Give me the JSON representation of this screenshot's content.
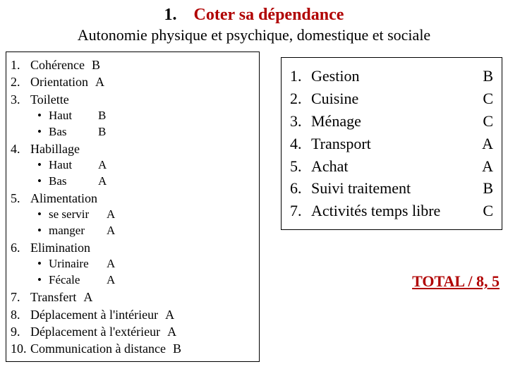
{
  "header": {
    "number": "1.",
    "title": "Coter sa dépendance",
    "subtitle": "Autonomie physique et psychique, domestique et sociale",
    "title_color": "#b00000"
  },
  "left": {
    "items": [
      {
        "n": "1.",
        "label": "Cohérence",
        "grade": "B"
      },
      {
        "n": "2.",
        "label": "Orientation",
        "grade": "A"
      },
      {
        "n": "3.",
        "label": "Toilette",
        "grade": "",
        "sub": [
          {
            "label": "Haut",
            "grade": "B"
          },
          {
            "label": "Bas",
            "grade": "B"
          }
        ]
      },
      {
        "n": "4.",
        "label": "Habillage",
        "grade": "",
        "sub": [
          {
            "label": "Haut",
            "grade": "A"
          },
          {
            "label": "Bas",
            "grade": "A"
          }
        ]
      },
      {
        "n": "5.",
        "label": "Alimentation",
        "grade": "",
        "sub": [
          {
            "label": "se servir",
            "grade": "A",
            "wide": true
          },
          {
            "label": "manger",
            "grade": "A",
            "wide": true
          }
        ]
      },
      {
        "n": "6.",
        "label": "Elimination",
        "grade": "",
        "sub": [
          {
            "label": "Urinaire",
            "grade": "A",
            "wide": true
          },
          {
            "label": "Fécale",
            "grade": "A",
            "wide": true
          }
        ]
      },
      {
        "n": "7.",
        "label": "Transfert",
        "grade": "A",
        "inline": true
      },
      {
        "n": "8.",
        "label": "Déplacement à l'intérieur",
        "grade": "A",
        "inline": true
      },
      {
        "n": "9.",
        "label": "Déplacement à l'extérieur",
        "grade": "A",
        "inline": true
      },
      {
        "n": "10.",
        "label": "Communication à distance",
        "grade": "B",
        "inline": true
      }
    ]
  },
  "right": {
    "items": [
      {
        "n": "1.",
        "label": "Gestion",
        "grade": "B"
      },
      {
        "n": "2.",
        "label": "Cuisine",
        "grade": "C"
      },
      {
        "n": "3.",
        "label": "Ménage",
        "grade": "C"
      },
      {
        "n": "4.",
        "label": "Transport",
        "grade": "A"
      },
      {
        "n": "5.",
        "label": "Achat",
        "grade": "A"
      },
      {
        "n": "6.",
        "label": "Suivi traitement",
        "grade": "B"
      },
      {
        "n": "7.",
        "label": "Activités temps libre",
        "grade": "C"
      }
    ]
  },
  "total": {
    "label": "TOTAL / 8, 5",
    "color": "#b00000"
  }
}
